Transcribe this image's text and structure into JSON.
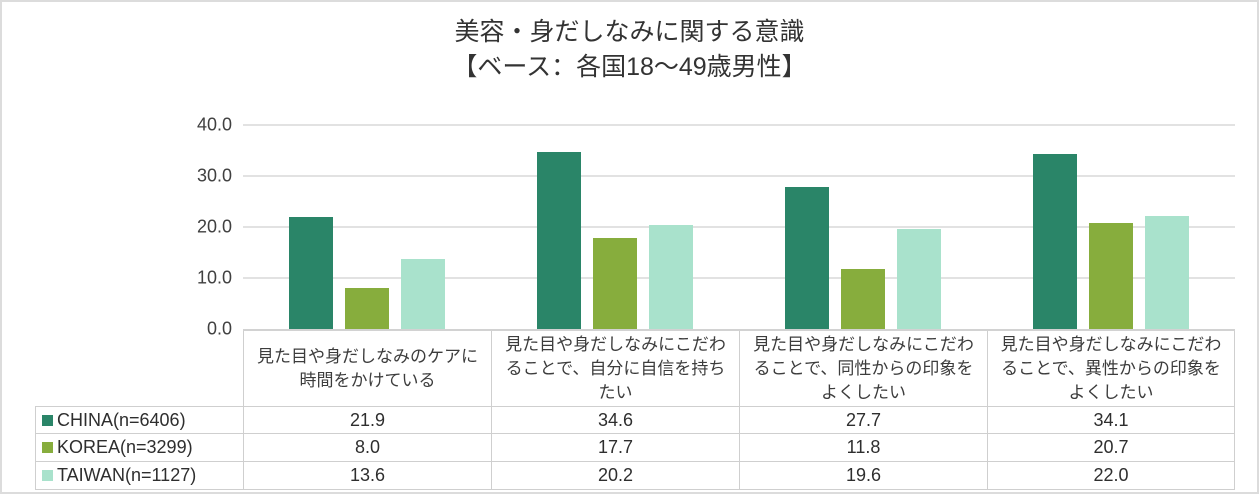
{
  "title": {
    "line1": "美容・身だしなみに関する意識",
    "line2": "【ベース：各国18～49歳男性】"
  },
  "y_axis": {
    "ticks": [
      "40.0",
      "30.0",
      "20.0",
      "10.0",
      "0.0"
    ]
  },
  "chart_data": {
    "type": "bar",
    "title": "美容・身だしなみに関する意識【ベース：各国18～49歳男性】",
    "categories": [
      "見た目や身だしなみのケアに時間をかけている",
      "見た目や身だしなみにこだわることで、自分に自信を持ちたい",
      "見た目や身だしなみにこだわることで、同性からの印象をよくしたい",
      "見た目や身だしなみにこだわることで、異性からの印象をよくしたい"
    ],
    "series": [
      {
        "name": "CHINA(n=6406)",
        "color": "#2a8568",
        "values": [
          21.9,
          34.6,
          27.7,
          34.1
        ]
      },
      {
        "name": "KOREA(n=3299)",
        "color": "#87ad3d",
        "values": [
          8.0,
          17.7,
          11.8,
          20.7
        ]
      },
      {
        "name": "TAIWAN(n=1127)",
        "color": "#a9e2cc",
        "values": [
          13.6,
          20.2,
          19.6,
          22.0
        ]
      }
    ],
    "ylim": [
      0,
      40
    ],
    "y_ticks": [
      0.0,
      10.0,
      20.0,
      30.0,
      40.0
    ],
    "grid": true,
    "legend_position": "data-table-left",
    "colors": {
      "grid": "#e2e2e2",
      "axis": "#d2d2d2",
      "table_border": "#cfcfcf"
    }
  },
  "table": {
    "rows": [
      {
        "label": "CHINA(n=6406)",
        "marker_color": "#2a8568",
        "cells": [
          "21.9",
          "34.6",
          "27.7",
          "34.1"
        ]
      },
      {
        "label": "KOREA(n=3299)",
        "marker_color": "#87ad3d",
        "cells": [
          "8.0",
          "17.7",
          "11.8",
          "20.7"
        ]
      },
      {
        "label": "TAIWAN(n=1127)",
        "marker_color": "#a9e2cc",
        "cells": [
          "13.6",
          "20.2",
          "19.6",
          "22.0"
        ]
      }
    ]
  }
}
